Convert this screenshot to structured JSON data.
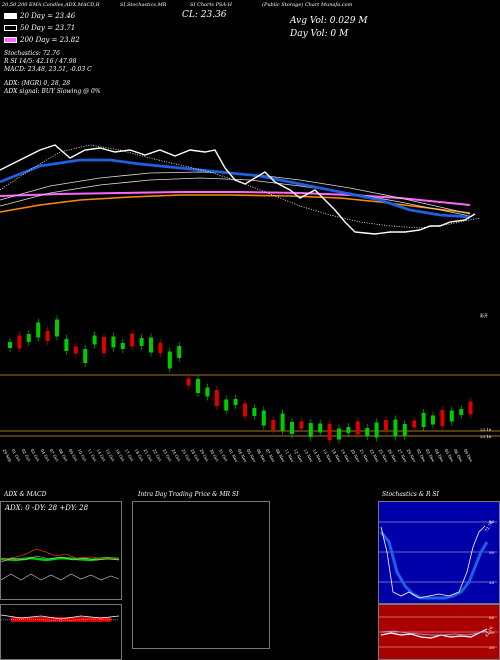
{
  "header": {
    "strip": [
      "20,50,200 EMA,Candles,ADX,MACD,R",
      "SI,Stochastics,MR",
      "SI Charts PSA-H",
      "(Public Storage) Chart Munafa.com"
    ],
    "close": "CL: 23.36",
    "avg_day": "Avg Vol: 0.029 M",
    "day_vol": "Day Vol: 0   M"
  },
  "legend": [
    {
      "label": "20  Day = 23.46",
      "color": "#ffffff"
    },
    {
      "label": "50  Day = 23.71",
      "color": "#ffffff"
    },
    {
      "label": "200  Day = 23.82",
      "color": "#ff66ff"
    }
  ],
  "stats": {
    "stoch": "Stochastics: 72.76",
    "rsi": "R          SI 14/5: 42.16  / 47.98",
    "macd": "MACD: 23.48,  23.51, -0.03  C",
    "adx": "ADX:                                   (MGR) 0,  28,  28",
    "adx_signal": "ADX  signal:                                    BUY Slowing @ 0%"
  },
  "price_labels": {
    "upper": "彩开",
    "p1": "23.16",
    "p2": "23.16"
  },
  "dates": [
    "29 Sep",
    "01 Oct",
    "02 Oct",
    "03 Oct",
    "04 Oct",
    "07 Oct",
    "08 Oct",
    "09 Oct",
    "10 Oct",
    "11 Oct",
    "14 Oct",
    "15 Oct",
    "16 Oct",
    "17 Oct",
    "18 Oct",
    "21 Oct",
    "22 Oct",
    "23 Oct",
    "24 Oct",
    "25 Oct",
    "28 Oct",
    "29 Oct",
    "30 Oct",
    "31 Oct",
    "01 Nov",
    "04 Nov",
    "05 Nov",
    "06 Nov",
    "07 Nov",
    "08 Nov",
    "11 Nov",
    "12 Nov",
    "13 Nov",
    "14 Nov",
    "15 Nov",
    "18 Nov",
    "19 Nov",
    "20 Nov",
    "21 Nov",
    "22 Nov",
    "25 Nov",
    "26 Nov",
    "27 Nov",
    "29 Nov",
    "02 Dec",
    "03 Dec",
    "04 Dec",
    "05 Dec",
    "06 Dec",
    "09 Dec"
  ],
  "bottom": {
    "adx_title": "ADX  & MACD",
    "adx_value": "ADX: 0   -DY: 28   +DY: 28",
    "intraday_title": "Intra  Day Trading Price  & MR              SI",
    "stoch_title": "Stochastics & R              SI",
    "stoch_levels": [
      "80",
      "50",
      "20"
    ],
    "stoch_reading": "72.76",
    "rsi_levels": [
      "80",
      "50",
      "20"
    ],
    "rsi_reading": "42.16"
  },
  "colors": {
    "bg": "#000000",
    "sma": "#1f5fe0",
    "ema200": "#ff66ff",
    "orange": "#ff8c00",
    "green": "#00cc00",
    "red": "#dd0000",
    "stoch_bg": "#0000aa",
    "rsi_bg": "#aa0000"
  }
}
